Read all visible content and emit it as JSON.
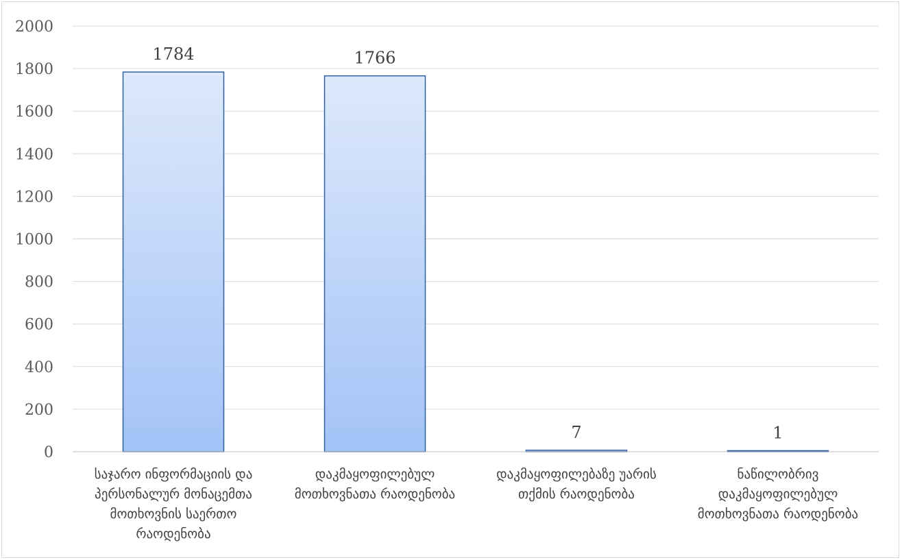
{
  "chart_data": {
    "type": "bar",
    "categories": [
      "საჯარო ინფორმაციის და პერსონალურ მონაცემთა მოთხოვნის საერთო რაოდენობა",
      "დაკმაყოფილებულ მოთხოვნათა რაოდენობა",
      "დაკმაყოფილებაზე უარის თქმის რაოდენობა",
      "ნაწილობრივ დაკმაყოფილებულ მოთხოვნათა რაოდენობა"
    ],
    "category_lines": [
      [
        "საჯარო ინფორმაციის და",
        "პერსონალურ მონაცემთა",
        "მოთხოვნის საერთო",
        "რაოდენობა"
      ],
      [
        "დაკმაყოფილებულ",
        "მოთხოვნათა რაოდენობა"
      ],
      [
        "დაკმაყოფილებაზე უარის",
        "თქმის რაოდენობა"
      ],
      [
        "ნაწილობრივ",
        "დაკმაყოფილებულ",
        "მოთხოვნათა რაოდენობა"
      ]
    ],
    "values": [
      1784,
      1766,
      7,
      1
    ],
    "data_labels": [
      "1784",
      "1766",
      "7",
      "1"
    ],
    "y_ticks": [
      "0",
      "200",
      "400",
      "600",
      "800",
      "1000",
      "1200",
      "1400",
      "1600",
      "1800",
      "2000"
    ],
    "ylim": [
      0,
      2000
    ],
    "title": "",
    "xlabel": "",
    "ylabel": "",
    "grid": true,
    "legend": "none",
    "colors": {
      "bar_top": "#dde9fb",
      "bar_bottom": "#a3c3f7",
      "bar_border": "#2e5f9e",
      "grid": "#d9d9d9"
    }
  }
}
